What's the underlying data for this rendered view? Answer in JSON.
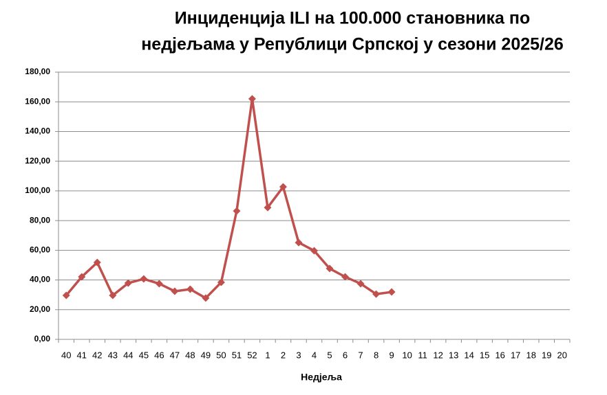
{
  "chart_data": {
    "type": "line",
    "title": [
      "Инциденција ILI на 100.000 становника по",
      "недјељама у Републици Српској у сезони 2025/26"
    ],
    "x_label": "Недјеља",
    "categories": [
      "40",
      "41",
      "42",
      "43",
      "44",
      "45",
      "46",
      "47",
      "48",
      "49",
      "50",
      "51",
      "52",
      "1",
      "2",
      "3",
      "4",
      "5",
      "6",
      "7",
      "8",
      "9",
      "10",
      "11",
      "12",
      "13",
      "14",
      "15",
      "16",
      "17",
      "18",
      "19",
      "20"
    ],
    "series": [
      {
        "color": "#c0504d",
        "values": [
          29.6,
          42.1,
          51.8,
          29.6,
          37.9,
          40.7,
          37.5,
          32.4,
          33.8,
          27.8,
          38.4,
          86.5,
          162.0,
          88.8,
          102.7,
          65.2,
          59.7,
          47.7,
          42.1,
          37.5,
          30.5,
          31.9,
          null,
          null,
          null,
          null,
          null,
          null,
          null,
          null,
          null,
          null,
          null
        ]
      }
    ],
    "ylim": [
      0,
      180
    ],
    "yticks": [
      {
        "value": 0,
        "label": "0,00"
      },
      {
        "value": 20,
        "label": "20,00"
      },
      {
        "value": 40,
        "label": "40,00"
      },
      {
        "value": 60,
        "label": "60,00"
      },
      {
        "value": 80,
        "label": "80,00"
      },
      {
        "value": 100,
        "label": "100,00"
      },
      {
        "value": 120,
        "label": "120,00"
      },
      {
        "value": 140,
        "label": "140,00"
      },
      {
        "value": 160,
        "label": "160,00"
      },
      {
        "value": 180,
        "label": "180,00"
      }
    ],
    "grid": true
  }
}
